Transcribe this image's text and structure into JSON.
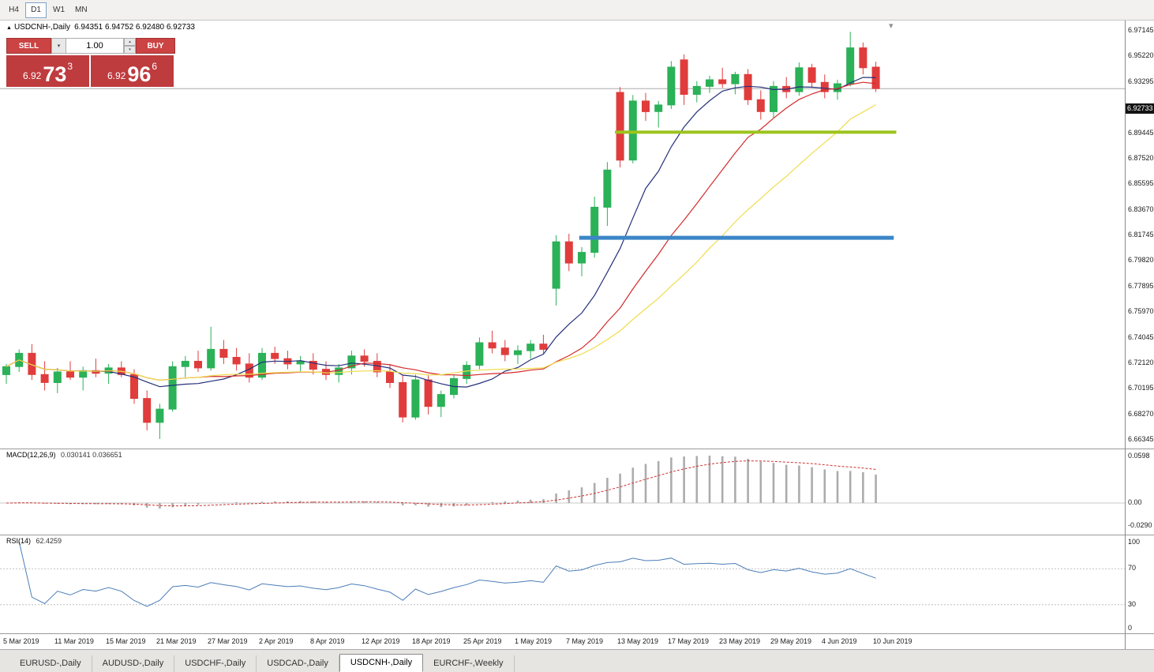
{
  "colors": {
    "bull": "#2BB157",
    "bear": "#E03C3C",
    "ma_fast": "#24307A",
    "ma_mid": "#D42A2A",
    "ma_slow": "#F0DC4E",
    "macd_hist": "#ACACAC",
    "macd_signal": "#CC3333",
    "rsi_line": "#4B7DB8",
    "trend_green": "#9CC41C",
    "trend_blue": "#3C86C8",
    "panel_red": "#BE3B3E",
    "bid_badge_bg": "#141414"
  },
  "toolbar": {
    "timeframes": [
      {
        "label": "H4",
        "active": false
      },
      {
        "label": "D1",
        "active": true
      },
      {
        "label": "W1",
        "active": false
      },
      {
        "label": "MN",
        "active": false
      }
    ]
  },
  "chart": {
    "title_symbol": "USDCNH-,Daily",
    "title_ohlc": "6.94351 6.94752 6.92480 6.92733",
    "bid_label": "6.92733",
    "price_axis": [
      "6.97145",
      "6.95220",
      "6.93295",
      "6.91370",
      "6.89445",
      "6.87520",
      "6.85595",
      "6.83670",
      "6.81745",
      "6.79820",
      "6.77895",
      "6.75970",
      "6.74045",
      "6.72120",
      "6.70195",
      "6.68270",
      "6.66345"
    ],
    "trade_panel": {
      "sell_label": "SELL",
      "buy_label": "BUY",
      "volume": "1.00",
      "sell_price_small": "6.92",
      "sell_price_big": "73",
      "sell_price_sup": "3",
      "buy_price_small": "6.92",
      "buy_price_big": "96",
      "buy_price_sup": "6"
    }
  },
  "chart_data": {
    "type": "candlestick",
    "symbol": "USDCNH-",
    "timeframe": "Daily",
    "price_range": [
      6.66345,
      6.97145
    ],
    "dates": [
      "5 Mar",
      "6 Mar",
      "7 Mar",
      "8 Mar",
      "11 Mar",
      "12 Mar",
      "13 Mar",
      "14 Mar",
      "15 Mar",
      "18 Mar",
      "19 Mar",
      "20 Mar",
      "21 Mar",
      "22 Mar",
      "25 Mar",
      "26 Mar",
      "27 Mar",
      "28 Mar",
      "29 Mar",
      "1 Apr",
      "2 Apr",
      "3 Apr",
      "4 Apr",
      "5 Apr",
      "8 Apr",
      "9 Apr",
      "10 Apr",
      "11 Apr",
      "12 Apr",
      "15 Apr",
      "16 Apr",
      "17 Apr",
      "18 Apr",
      "22 Apr",
      "23 Apr",
      "24 Apr",
      "25 Apr",
      "26 Apr",
      "29 Apr",
      "30 Apr",
      "1 May",
      "2 May",
      "3 May",
      "6 May",
      "7 May",
      "8 May",
      "9 May",
      "10 May",
      "13 May",
      "14 May",
      "15 May",
      "16 May",
      "17 May",
      "20 May",
      "21 May",
      "22 May",
      "23 May",
      "24 May",
      "27 May",
      "28 May",
      "29 May",
      "30 May",
      "31 May",
      "3 Jun",
      "4 Jun",
      "5 Jun",
      "6 Jun",
      "7 Jun",
      "10 Jun"
    ],
    "ohlc": [
      [
        6.712,
        6.72,
        6.705,
        6.718
      ],
      [
        6.718,
        6.731,
        6.714,
        6.728
      ],
      [
        6.728,
        6.735,
        6.708,
        6.712
      ],
      [
        6.712,
        6.722,
        6.7,
        6.706
      ],
      [
        6.706,
        6.717,
        6.698,
        6.714
      ],
      [
        6.714,
        6.722,
        6.708,
        6.71
      ],
      [
        6.71,
        6.718,
        6.7,
        6.715
      ],
      [
        6.715,
        6.724,
        6.71,
        6.713
      ],
      [
        6.713,
        6.72,
        6.705,
        6.717
      ],
      [
        6.717,
        6.722,
        6.71,
        6.712
      ],
      [
        6.712,
        6.716,
        6.69,
        6.694
      ],
      [
        6.694,
        6.7,
        6.67,
        6.676
      ],
      [
        6.676,
        6.69,
        6.6635,
        6.686
      ],
      [
        6.686,
        6.722,
        6.684,
        6.718
      ],
      [
        6.718,
        6.726,
        6.71,
        6.722
      ],
      [
        6.722,
        6.73,
        6.714,
        6.717
      ],
      [
        6.717,
        6.748,
        6.715,
        6.731
      ],
      [
        6.731,
        6.738,
        6.72,
        6.725
      ],
      [
        6.725,
        6.732,
        6.715,
        6.72
      ],
      [
        6.72,
        6.728,
        6.706,
        6.71
      ],
      [
        6.71,
        6.732,
        6.708,
        6.728
      ],
      [
        6.728,
        6.733,
        6.72,
        6.724
      ],
      [
        6.724,
        6.73,
        6.716,
        6.72
      ],
      [
        6.72,
        6.726,
        6.714,
        6.722
      ],
      [
        6.722,
        6.728,
        6.712,
        6.716
      ],
      [
        6.716,
        6.722,
        6.708,
        6.712
      ],
      [
        6.712,
        6.72,
        6.706,
        6.717
      ],
      [
        6.717,
        6.73,
        6.712,
        6.726
      ],
      [
        6.726,
        6.731,
        6.718,
        6.722
      ],
      [
        6.722,
        6.728,
        6.71,
        6.714
      ],
      [
        6.714,
        6.72,
        6.702,
        6.706
      ],
      [
        6.706,
        6.712,
        6.676,
        6.68
      ],
      [
        6.68,
        6.712,
        6.678,
        6.708
      ],
      [
        6.708,
        6.712,
        6.682,
        6.688
      ],
      [
        6.688,
        6.7,
        6.68,
        6.697
      ],
      [
        6.697,
        6.712,
        6.694,
        6.709
      ],
      [
        6.709,
        6.722,
        6.705,
        6.719
      ],
      [
        6.719,
        6.74,
        6.716,
        6.736
      ],
      [
        6.736,
        6.745,
        6.728,
        6.732
      ],
      [
        6.732,
        6.738,
        6.722,
        6.727
      ],
      [
        6.727,
        6.734,
        6.72,
        6.73
      ],
      [
        6.73,
        6.738,
        6.724,
        6.735
      ],
      [
        6.735,
        6.742,
        6.728,
        6.731
      ],
      [
        6.777,
        6.817,
        6.764,
        6.812
      ],
      [
        6.812,
        6.818,
        6.79,
        6.796
      ],
      [
        6.796,
        6.808,
        6.786,
        6.804
      ],
      [
        6.804,
        6.846,
        6.8,
        6.838
      ],
      [
        6.838,
        6.872,
        6.824,
        6.866
      ],
      [
        6.9245,
        6.9285,
        6.868,
        6.8735
      ],
      [
        6.8735,
        6.9225,
        6.871,
        6.918
      ],
      [
        6.918,
        6.924,
        6.903,
        6.91
      ],
      [
        6.91,
        6.918,
        6.898,
        6.915
      ],
      [
        6.915,
        6.948,
        6.912,
        6.9435
      ],
      [
        6.949,
        6.953,
        6.915,
        6.923
      ],
      [
        6.923,
        6.933,
        6.917,
        6.929
      ],
      [
        6.929,
        6.937,
        6.924,
        6.934
      ],
      [
        6.934,
        6.943,
        6.928,
        6.931
      ],
      [
        6.931,
        6.94,
        6.923,
        6.938
      ],
      [
        6.938,
        6.942,
        6.915,
        6.919
      ],
      [
        6.919,
        6.926,
        6.904,
        6.91
      ],
      [
        6.91,
        6.933,
        6.905,
        6.929
      ],
      [
        6.929,
        6.936,
        6.92,
        6.925
      ],
      [
        6.925,
        6.947,
        6.922,
        6.943
      ],
      [
        6.943,
        6.946,
        6.928,
        6.932
      ],
      [
        6.932,
        6.938,
        6.92,
        6.925
      ],
      [
        6.925,
        6.934,
        6.919,
        6.931
      ],
      [
        6.931,
        6.97,
        6.929,
        6.958
      ],
      [
        6.958,
        6.962,
        6.938,
        6.943
      ],
      [
        6.94351,
        6.94752,
        6.9248,
        6.92733
      ]
    ],
    "date_axis_labels": [
      {
        "label": "5 Mar 2019",
        "index": 0
      },
      {
        "label": "11 Mar 2019",
        "index": 4
      },
      {
        "label": "15 Mar 2019",
        "index": 8
      },
      {
        "label": "21 Mar 2019",
        "index": 12
      },
      {
        "label": "27 Mar 2019",
        "index": 16
      },
      {
        "label": "2 Apr 2019",
        "index": 20
      },
      {
        "label": "8 Apr 2019",
        "index": 24
      },
      {
        "label": "12 Apr 2019",
        "index": 28
      },
      {
        "label": "18 Apr 2019",
        "index": 32
      },
      {
        "label": "25 Apr 2019",
        "index": 36
      },
      {
        "label": "1 May 2019",
        "index": 40
      },
      {
        "label": "7 May 2019",
        "index": 44
      },
      {
        "label": "13 May 2019",
        "index": 48
      },
      {
        "label": "17 May 2019",
        "index": 52
      },
      {
        "label": "23 May 2019",
        "index": 56
      },
      {
        "label": "29 May 2019",
        "index": 60
      },
      {
        "label": "4 Jun 2019",
        "index": 64
      },
      {
        "label": "10 Jun 2019",
        "index": 68
      }
    ],
    "moving_averages": [
      {
        "name": "fast",
        "period": 8,
        "color": "#24307A"
      },
      {
        "name": "medium",
        "period": 16,
        "color": "#D42A2A"
      },
      {
        "name": "slow",
        "period": 24,
        "color": "#F0DC4E"
      }
    ],
    "trend_lines": [
      {
        "name": "resistance-green",
        "price": 6.8945,
        "from_index": 47.6,
        "to_index": 69.6,
        "color": "#9CC41C",
        "width": 4
      },
      {
        "name": "support-blue",
        "price": 6.815,
        "from_index": 44.8,
        "to_index": 69.4,
        "color": "#3C86C8",
        "width": 5
      }
    ],
    "indicators": {
      "macd": {
        "label": "MACD(12,26,9)",
        "values": "0.030141 0.036651",
        "params": [
          12,
          26,
          9
        ],
        "axis": [
          "0.0598",
          "0.00",
          "-0.0290"
        ]
      },
      "rsi": {
        "label": "RSI(14)",
        "value": "62.4259",
        "period": 14,
        "levels": [
          70,
          30
        ],
        "axis": [
          "100",
          "70",
          "30",
          "0"
        ]
      }
    }
  },
  "tabs": [
    {
      "label": "EURUSD-,Daily",
      "active": false
    },
    {
      "label": "AUDUSD-,Daily",
      "active": false
    },
    {
      "label": "USDCHF-,Daily",
      "active": false
    },
    {
      "label": "USDCAD-,Daily",
      "active": false
    },
    {
      "label": "USDCNH-,Daily",
      "active": true
    },
    {
      "label": "EURCHF-,Weekly",
      "active": false
    }
  ]
}
